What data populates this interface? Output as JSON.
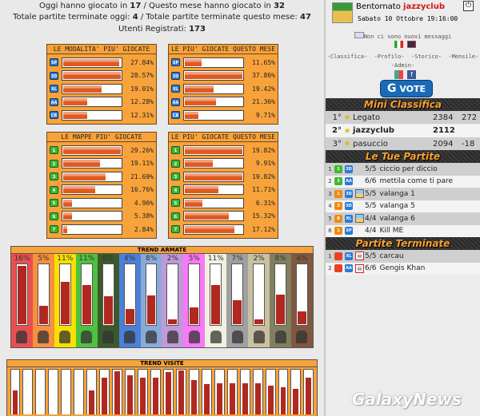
{
  "stats": {
    "today_label": "Oggi hanno giocato in",
    "today": "17",
    "month_label": "/ Questo mese hanno giocato in",
    "month": "32",
    "ended_today_label": "Totale partite terminate oggi:",
    "ended_today": "4",
    "ended_month_label": "/ Totale partite terminate questo mese:",
    "ended_month": "47",
    "users_label": "Utenti Registrati:",
    "users": "173"
  },
  "modes_all": {
    "title": "LE MODALITA' PIU' GIOCATE",
    "rows": [
      {
        "code": "SP",
        "pct": "27.84%",
        "fill": 0.97
      },
      {
        "code": "3D",
        "pct": "28.57%",
        "fill": 1.0
      },
      {
        "code": "XL",
        "pct": "19.01%",
        "fill": 0.67
      },
      {
        "code": "AA",
        "pct": "12.28%",
        "fill": 0.43
      },
      {
        "code": "CB",
        "pct": "12.31%",
        "fill": 0.43
      }
    ]
  },
  "modes_month": {
    "title": "LE PIU' GIOCATE QUESTO MESE",
    "rows": [
      {
        "code": "SP",
        "pct": "11.65%",
        "fill": 0.31
      },
      {
        "code": "3D",
        "pct": "37.86%",
        "fill": 1.0
      },
      {
        "code": "XL",
        "pct": "19.42%",
        "fill": 0.51
      },
      {
        "code": "AA",
        "pct": "21.36%",
        "fill": 0.56
      },
      {
        "code": "CB",
        "pct": "9.71%",
        "fill": 0.26
      }
    ]
  },
  "maps_all": {
    "title": "LE MAPPE PIU' GIOCATE",
    "rows": [
      {
        "code": "1",
        "pct": "29.26%",
        "fill": 1.0
      },
      {
        "code": "2",
        "pct": "19.11%",
        "fill": 0.65
      },
      {
        "code": "3",
        "pct": "21.69%",
        "fill": 0.74
      },
      {
        "code": "4",
        "pct": "16.76%",
        "fill": 0.57
      },
      {
        "code": "5",
        "pct": "4.96%",
        "fill": 0.17
      },
      {
        "code": "6",
        "pct": "5.38%",
        "fill": 0.18
      },
      {
        "code": "7",
        "pct": "2.84%",
        "fill": 0.1
      }
    ]
  },
  "maps_month": {
    "title": "LE PIU' GIOCATE QUESTO MESE",
    "rows": [
      {
        "code": "1",
        "pct": "19.82%",
        "fill": 1.0
      },
      {
        "code": "2",
        "pct": "9.91%",
        "fill": 0.5
      },
      {
        "code": "3",
        "pct": "19.82%",
        "fill": 1.0
      },
      {
        "code": "4",
        "pct": "11.71%",
        "fill": 0.59
      },
      {
        "code": "5",
        "pct": "6.31%",
        "fill": 0.32
      },
      {
        "code": "6",
        "pct": "15.32%",
        "fill": 0.77
      },
      {
        "code": "7",
        "pct": "17.12%",
        "fill": 0.86
      }
    ]
  },
  "trend_armate": {
    "title": "TREND ARMATE",
    "cols": [
      {
        "pct": "16%",
        "fill": 0.99,
        "color": "#e85050"
      },
      {
        "pct": "5%",
        "fill": 0.33,
        "color": "#f79040"
      },
      {
        "pct": "11%",
        "fill": 0.72,
        "color": "#f8e000"
      },
      {
        "pct": "11%",
        "fill": 0.67,
        "color": "#50c040"
      },
      {
        "pct": "8%",
        "fill": 0.49,
        "color": "#3a5a2a"
      },
      {
        "pct": "4%",
        "fill": 0.27,
        "color": "#4a80d8"
      },
      {
        "pct": "8%",
        "fill": 0.5,
        "color": "#88aad8"
      },
      {
        "pct": "2%",
        "fill": 0.11,
        "color": "#c09ad8"
      },
      {
        "pct": "5%",
        "fill": 0.3,
        "color": "#f878f8"
      },
      {
        "pct": "11%",
        "fill": 0.67,
        "color": "#f0f0e0"
      },
      {
        "pct": "7%",
        "fill": 0.42,
        "color": "#a0a0a0"
      },
      {
        "pct": "2%",
        "fill": 0.11,
        "color": "#c8c0a0"
      },
      {
        "pct": "8%",
        "fill": 0.51,
        "color": "#808060"
      },
      {
        "pct": "4%",
        "fill": 0.24,
        "color": "#805840"
      }
    ]
  },
  "trend_visite": {
    "title": "TREND VISITE",
    "fills": [
      0.53,
      0,
      0,
      0,
      0,
      0,
      0.54,
      0.82,
      0.97,
      0.87,
      0.82,
      0.82,
      0.94,
      0.99,
      0.77,
      0.67,
      0.69,
      0.7,
      0.69,
      0.69,
      0.64,
      0.6,
      0.58,
      0.82
    ]
  },
  "user": {
    "greeting": "Bentornato",
    "name": "jazzyclub",
    "date": "Sabato 10 Ottobre 19:16:00",
    "messages": "Non ci sono nuovi messaggi",
    "links": [
      "-Classifica-",
      "-Profilo-",
      "-Storico-",
      "-Mensile-"
    ],
    "admin": "-Admin-",
    "vote": "VOTE"
  },
  "mini_classifica": {
    "title": "Mini Classifica",
    "rows": [
      {
        "pos": "1°",
        "name": "Legato",
        "score": "2384",
        "diff": "272"
      },
      {
        "pos": "2°",
        "name": "jazzyclub",
        "score": "2112",
        "diff": ""
      },
      {
        "pos": "3°",
        "name": "pasuccio",
        "score": "2094",
        "diff": "-18"
      }
    ]
  },
  "tue_partite": {
    "title": "Le Tue Partite",
    "rows": [
      {
        "n": "1",
        "turn": "1",
        "tc": "gr",
        "mode": "3D",
        "map": false,
        "players": "5/5",
        "name": "ciccio per diccio"
      },
      {
        "n": "2",
        "turn": "3",
        "tc": "gr",
        "mode": "AA",
        "map": false,
        "players": "6/6",
        "name": "mettila come ti pare"
      },
      {
        "n": "3",
        "turn": "1",
        "tc": "o",
        "mode": "3D",
        "map": true,
        "players": "5/5",
        "name": "valanga 1"
      },
      {
        "n": "4",
        "turn": "3",
        "tc": "o",
        "mode": "3D",
        "map": false,
        "players": "5/5",
        "name": "valanga 5"
      },
      {
        "n": "5",
        "turn": "8",
        "tc": "o",
        "mode": "XL",
        "map": true,
        "players": "4/4",
        "name": "valanga 6"
      },
      {
        "n": "6",
        "turn": "1",
        "tc": "o",
        "mode": "SP",
        "map": false,
        "players": "4/4",
        "name": "Kill ME"
      }
    ]
  },
  "partite_terminate": {
    "title": "Partite Terminate",
    "rows": [
      {
        "n": "1",
        "mode": "XL",
        "players": "5/5",
        "name": "carcau"
      },
      {
        "n": "2",
        "mode": "AA",
        "players": "6/6",
        "name": "Gengis Khan"
      }
    ]
  },
  "watermark": "GalaxyNews"
}
